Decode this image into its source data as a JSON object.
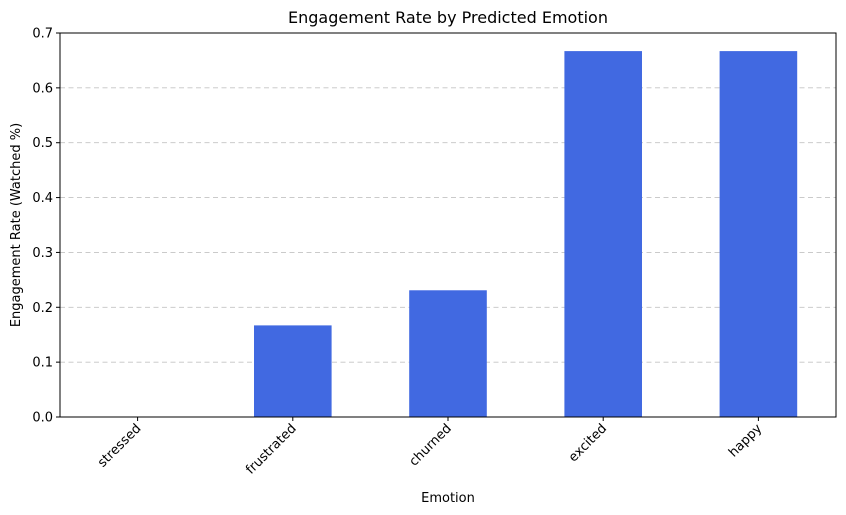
{
  "chart_data": {
    "type": "bar",
    "title": "Engagement Rate by Predicted Emotion",
    "xlabel": "Emotion",
    "ylabel": "Engagement Rate (Watched %)",
    "categories": [
      "stressed",
      "frustrated",
      "churned",
      "excited",
      "happy"
    ],
    "values": [
      0.0,
      0.167,
      0.231,
      0.667,
      0.667
    ],
    "ylim": [
      0,
      0.7
    ],
    "yticks": [
      "0.0",
      "0.1",
      "0.2",
      "0.3",
      "0.4",
      "0.5",
      "0.6",
      "0.7"
    ],
    "grid": "y-axis dashed",
    "bar_color": "#4169e1",
    "xtick_rotation_deg": 45
  }
}
